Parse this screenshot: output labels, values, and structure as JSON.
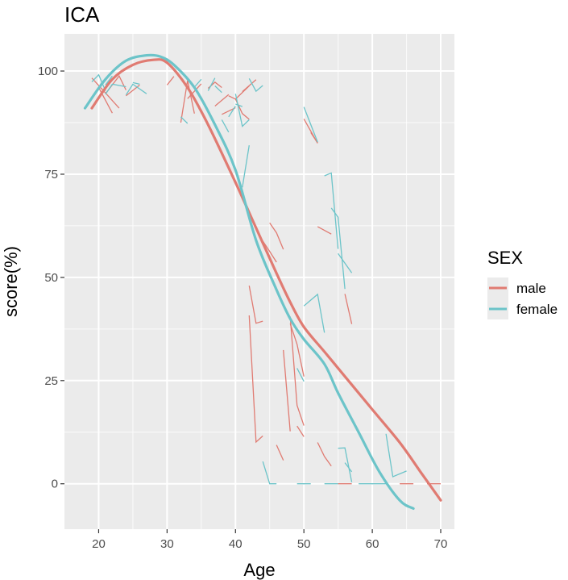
{
  "chart_data": {
    "type": "line",
    "title": "ICA",
    "xlabel": "Age",
    "ylabel": "score(%)",
    "xlim": [
      15,
      72
    ],
    "ylim": [
      -11,
      109
    ],
    "x_ticks": [
      20,
      30,
      40,
      50,
      60,
      70
    ],
    "y_ticks": [
      0,
      25,
      50,
      75,
      100
    ],
    "x_tick_labels": [
      "20",
      "30",
      "40",
      "50",
      "60",
      "70"
    ],
    "y_tick_labels": [
      "0",
      "25",
      "50",
      "75",
      "100"
    ],
    "grid": true,
    "legend": {
      "title": "SEX",
      "position": "right",
      "entries": [
        "male",
        "female"
      ]
    },
    "colors": {
      "male": "#e07b72",
      "female": "#6cc4c9",
      "panel": "#ebebeb",
      "grid_major": "#ffffff"
    },
    "series": [
      {
        "name": "male",
        "color": "#e07b72",
        "smooth": {
          "x": [
            19,
            22,
            25,
            28,
            30,
            33,
            36,
            40,
            43,
            46,
            48,
            50,
            53,
            56,
            60,
            64,
            67,
            70
          ],
          "y": [
            91,
            98,
            101.5,
            102.7,
            102,
            96,
            87,
            73,
            62,
            51,
            44,
            38,
            32,
            26,
            18,
            10,
            3,
            -4
          ]
        },
        "segments": [
          [
            [
              19,
              98.3
            ],
            [
              21,
              94.7
            ],
            [
              23,
              91.0
            ]
          ],
          [
            [
              20,
              96.0
            ],
            [
              22,
              89.8
            ]
          ],
          [
            [
              21,
              94.5
            ],
            [
              23,
              98.8
            ],
            [
              24,
              95.4
            ]
          ],
          [
            [
              24,
              94.0
            ],
            [
              26,
              96.6
            ]
          ],
          [
            [
              30,
              96.6
            ],
            [
              31,
              98.7
            ]
          ],
          [
            [
              32,
              87.5
            ],
            [
              33,
              97.7
            ],
            [
              34,
              89.7
            ]
          ],
          [
            [
              33,
              93.3
            ],
            [
              35,
              96.9
            ]
          ],
          [
            [
              36,
              95.8
            ],
            [
              37,
              97.3
            ],
            [
              38,
              96.0
            ]
          ],
          [
            [
              37,
              91.5
            ],
            [
              39,
              94.3
            ]
          ],
          [
            [
              38,
              89.5
            ],
            [
              40,
              91.1
            ]
          ],
          [
            [
              39,
              94.0
            ],
            [
              40,
              93.2
            ],
            [
              42,
              96.4
            ]
          ],
          [
            [
              40,
              93.2
            ],
            [
              41,
              89.7
            ],
            [
              42,
              88.3
            ]
          ],
          [
            [
              41,
              95.0
            ],
            [
              43,
              97.9
            ]
          ],
          [
            [
              42,
              48.0
            ],
            [
              43,
              38.9
            ],
            [
              44,
              39.4
            ]
          ],
          [
            [
              42,
              40.8
            ],
            [
              43,
              10.1
            ],
            [
              44,
              11.6
            ]
          ],
          [
            [
              44,
              58.8
            ],
            [
              45,
              56.3
            ],
            [
              46,
              53.7
            ]
          ],
          [
            [
              45,
              63.2
            ],
            [
              46,
              60.8
            ],
            [
              47,
              56.8
            ]
          ],
          [
            [
              46,
              9.4
            ],
            [
              47,
              5.7
            ]
          ],
          [
            [
              47,
              32.4
            ],
            [
              48,
              12.7
            ]
          ],
          [
            [
              48,
              40.5
            ],
            [
              49,
              19.0
            ],
            [
              50,
              14.1
            ]
          ],
          [
            [
              48,
              38.8
            ],
            [
              49,
              33.8
            ],
            [
              50,
              26.0
            ]
          ],
          [
            [
              49,
              14.0
            ],
            [
              50,
              11.4
            ]
          ],
          [
            [
              50,
              88.4
            ],
            [
              52,
              82.5
            ]
          ],
          [
            [
              51,
              85.1
            ],
            [
              52,
              82.6
            ]
          ],
          [
            [
              52,
              10.0
            ],
            [
              53,
              6.6
            ],
            [
              54,
              4.3
            ]
          ],
          [
            [
              52,
              62.3
            ],
            [
              54,
              60.5
            ]
          ],
          [
            [
              56,
              46.0
            ],
            [
              57,
              38.7
            ]
          ],
          [
            [
              55,
              0.0
            ],
            [
              57,
              0.0
            ]
          ],
          [
            [
              64,
              0.0
            ],
            [
              66,
              0.0
            ]
          ],
          [
            [
              68,
              0.0
            ],
            [
              70,
              0.0
            ]
          ]
        ]
      },
      {
        "name": "female",
        "color": "#6cc4c9",
        "smooth": {
          "x": [
            18,
            21,
            24,
            27,
            29,
            31,
            34,
            37,
            40,
            43,
            46,
            48,
            50,
            53,
            55,
            58,
            61,
            64,
            66
          ],
          "y": [
            91,
            98,
            102.5,
            103.8,
            103.5,
            101.5,
            96,
            87,
            76,
            59,
            47,
            40,
            35,
            29,
            22,
            12.5,
            3,
            -4,
            -6
          ]
        },
        "segments": [
          [
            [
              19,
              97.4
            ],
            [
              20,
              99.1
            ],
            [
              21,
              95.2
            ]
          ],
          [
            [
              21,
              94.4
            ],
            [
              22,
              96.8
            ],
            [
              24,
              96.2
            ]
          ],
          [
            [
              21,
              96.6
            ],
            [
              22,
              98.8
            ]
          ],
          [
            [
              24,
              94.2
            ],
            [
              25,
              96.8
            ],
            [
              27,
              94.5
            ]
          ],
          [
            [
              25,
              97.2
            ],
            [
              26,
              96.8
            ]
          ],
          [
            [
              32,
              88.9
            ],
            [
              33,
              87.3
            ]
          ],
          [
            [
              34,
              96.1
            ],
            [
              35,
              98.0
            ]
          ],
          [
            [
              36,
              95.2
            ],
            [
              37,
              98.3
            ]
          ],
          [
            [
              37,
              96.4
            ],
            [
              38,
              94.8
            ]
          ],
          [
            [
              38,
              88.2
            ],
            [
              39,
              85.2
            ]
          ],
          [
            [
              39,
              88.9
            ],
            [
              40,
              91.5
            ]
          ],
          [
            [
              40,
              92.0
            ],
            [
              41,
              91.4
            ]
          ],
          [
            [
              40,
              94.5
            ],
            [
              41,
              86.6
            ],
            [
              42,
              88.2
            ]
          ],
          [
            [
              41,
              71.8
            ],
            [
              42,
              82.0
            ]
          ],
          [
            [
              42,
              98.2
            ],
            [
              43,
              95.1
            ],
            [
              44,
              96.5
            ]
          ],
          [
            [
              44,
              5.4
            ],
            [
              45,
              0.0
            ],
            [
              46,
              0.0
            ]
          ],
          [
            [
              49,
              28.0
            ],
            [
              50,
              24.8
            ]
          ],
          [
            [
              50,
              91.3
            ],
            [
              52,
              82.8
            ]
          ],
          [
            [
              50,
              43.1
            ],
            [
              52,
              45.9
            ],
            [
              53,
              36.6
            ]
          ],
          [
            [
              49,
              0.0
            ],
            [
              51,
              0.0
            ]
          ],
          [
            [
              53,
              0.0
            ],
            [
              55,
              0.0
            ]
          ],
          [
            [
              53,
              74.6
            ],
            [
              54,
              75.3
            ],
            [
              55,
              56.9
            ]
          ],
          [
            [
              54,
              66.8
            ],
            [
              55,
              64.6
            ],
            [
              56,
              47.2
            ]
          ],
          [
            [
              55,
              55.8
            ],
            [
              57,
              51.1
            ]
          ],
          [
            [
              55,
              8.6
            ],
            [
              56,
              8.7
            ],
            [
              57,
              0.4
            ]
          ],
          [
            [
              56,
              5.1
            ],
            [
              57,
              2.9
            ]
          ],
          [
            [
              58,
              0.0
            ],
            [
              62,
              0.0
            ]
          ],
          [
            [
              62,
              12.1
            ],
            [
              63,
              1.7
            ],
            [
              65,
              3.1
            ]
          ]
        ]
      }
    ]
  }
}
